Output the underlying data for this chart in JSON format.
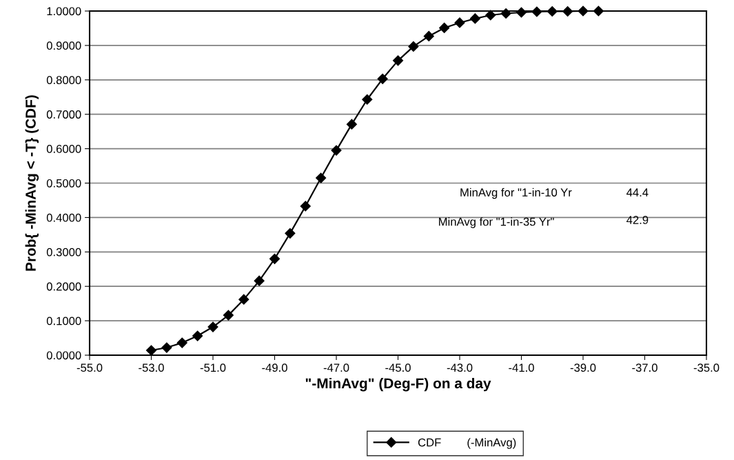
{
  "chart_data": {
    "type": "line",
    "xlabel": "\"-MinAvg\" (Deg-F) on a day",
    "ylabel": "Prob{ -MinAvg < -T} (CDF)",
    "annotations": [
      "MinAvg for \"1-in-10 Yr",
      "44.4",
      "MinAvg for \"1-in-35 Yr\"",
      "42.9"
    ],
    "series": [
      {
        "name": "CDF        (-MinAvg)",
        "color": "#000000",
        "x": [
          -53.0,
          -52.5,
          -52.0,
          -51.5,
          -51.0,
          -50.5,
          -50.0,
          -49.5,
          -49.0,
          -48.5,
          -48.0,
          -47.5,
          -47.0,
          -46.5,
          -46.0,
          -45.5,
          -45.0,
          -44.5,
          -44.0,
          -43.5,
          -43.0,
          -42.5,
          -42.0,
          -41.5,
          -41.0,
          -40.5,
          -40.0,
          -39.5,
          -39.0,
          -38.5
        ],
        "values": [
          0.014,
          0.022,
          0.036,
          0.056,
          0.082,
          0.116,
          0.162,
          0.216,
          0.28,
          0.354,
          0.433,
          0.515,
          0.595,
          0.671,
          0.743,
          0.803,
          0.856,
          0.897,
          0.927,
          0.951,
          0.966,
          0.978,
          0.988,
          0.993,
          0.996,
          0.998,
          0.999,
          0.999,
          1.0,
          1.0
        ]
      }
    ],
    "xlim": [
      -55.0,
      -35.0
    ],
    "xticks": [
      {
        "value": -55,
        "label": "-55.0"
      },
      {
        "value": -53,
        "label": "-53.0"
      },
      {
        "value": -51,
        "label": "-51.0"
      },
      {
        "value": -49,
        "label": "-49.0"
      },
      {
        "value": -47,
        "label": "-47.0"
      },
      {
        "value": -45,
        "label": "-45.0"
      },
      {
        "value": -43,
        "label": "-43.0"
      },
      {
        "value": -41,
        "label": "-41.0"
      },
      {
        "value": -39,
        "label": "-39.0"
      },
      {
        "value": -37,
        "label": "-37.0"
      },
      {
        "value": -35,
        "label": "-35.0"
      }
    ],
    "ylim": [
      0,
      1
    ],
    "yticks": [
      {
        "value": 0,
        "label": "0.0000"
      },
      {
        "value": 0.1,
        "label": "0.1000"
      },
      {
        "value": 0.2,
        "label": "0.2000"
      },
      {
        "value": 0.3,
        "label": "0.3000"
      },
      {
        "value": 0.4,
        "label": "0.4000"
      },
      {
        "value": 0.5,
        "label": "0.5000"
      },
      {
        "value": 0.6,
        "label": "0.6000"
      },
      {
        "value": 0.7,
        "label": "0.7000"
      },
      {
        "value": 0.8,
        "label": "0.8000"
      },
      {
        "value": 0.9,
        "label": "0.9000"
      },
      {
        "value": 1.0,
        "label": "1.0000"
      }
    ],
    "grid": "y",
    "legend": "bottom",
    "marker": "diamond",
    "line_style": "solid"
  }
}
